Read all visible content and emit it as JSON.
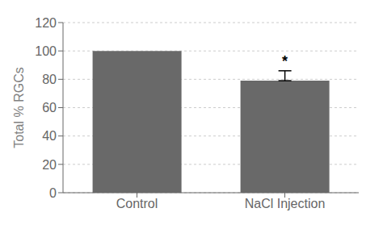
{
  "chart_data": {
    "type": "bar",
    "categories": [
      "Control",
      "NaCl Injection"
    ],
    "values": [
      100,
      79
    ],
    "error_upper": [
      null,
      7
    ],
    "error_lower": [
      null,
      0
    ],
    "color": "#696969",
    "ylabel": "Total % RGCs",
    "ylim": [
      0,
      120
    ],
    "yticks": [
      0,
      20,
      40,
      60,
      80,
      100,
      120
    ],
    "grid": true,
    "annotations": [
      {
        "text": "*",
        "category": "NaCl Injection"
      }
    ]
  }
}
